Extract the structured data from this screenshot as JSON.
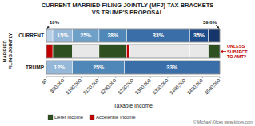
{
  "chart_data": {
    "type": "bar",
    "orientation": "horizontal",
    "title": "CURRENT MARRIED FILING JOINTLY (MFJ) TAX BRACKETS",
    "subtitle": "VS TRUMP'S PROPOSAL",
    "x_label": "Taxable Income",
    "y_label": "MARRIED\nFILING JOINTLY",
    "categories": [
      "CURRENT",
      null,
      "TRUMP"
    ],
    "rows": [
      {
        "starts": [
          0,
          18550,
          75300,
          151900,
          231450,
          413350,
          466950
        ],
        "ends": [
          18550,
          75300,
          151900,
          231450,
          413350,
          466950,
          500000
        ],
        "labels": [
          null,
          "15%",
          "25%",
          "28%",
          "33%",
          "35%",
          null
        ],
        "colors": [
          "#b8cfe8",
          "#95b8d9",
          "#6fa0c8",
          "#4e87b8",
          "#3a6ea8",
          "#1f4e8c",
          "#15356b"
        ]
      },
      {
        "starts": [
          0,
          18550,
          75300,
          151900,
          231450,
          240000,
          413350,
          466950
        ],
        "ends": [
          18550,
          75300,
          151900,
          231450,
          240000,
          413350,
          466950,
          500000
        ],
        "colors": [
          "#c00000",
          "#2e4f20",
          "#e8e8e8",
          "#2e4f20",
          "#c00000",
          "#e8e8e8",
          "#e8e8e8",
          "#2e4f20"
        ]
      },
      {
        "starts": [
          0,
          75300,
          225000
        ],
        "ends": [
          75300,
          225000,
          500000
        ],
        "labels": [
          "12%",
          "25%",
          "33%"
        ],
        "colors": [
          "#95b8d9",
          "#4e87b8",
          "#3a6ea8"
        ]
      }
    ],
    "xlim": [
      0,
      500000
    ],
    "xticks": [
      {
        "value": 0,
        "label": "$0"
      },
      {
        "value": 50000,
        "label": "$50,000"
      },
      {
        "value": 100000,
        "label": "$100,000"
      },
      {
        "value": 150000,
        "label": "$150,000"
      },
      {
        "value": 200000,
        "label": "$200,000"
      },
      {
        "value": 250000,
        "label": "$250,000"
      },
      {
        "value": 300000,
        "label": "$300,000"
      },
      {
        "value": 350000,
        "label": "$350,000"
      },
      {
        "value": 400000,
        "label": "$400,000"
      },
      {
        "value": 450000,
        "label": "$450,000"
      },
      {
        "value": 500000,
        "label": "$500,000"
      }
    ],
    "annotations": [
      {
        "text": "10%",
        "x": 0,
        "row": 0
      },
      {
        "text": "39.6%",
        "x": 500000,
        "row": 0
      },
      {
        "text": "UNLESS\nSUBJECT\nTO AMT?",
        "x": 500000,
        "row": 1,
        "color": "#c00000"
      }
    ],
    "legend": "bottom",
    "legend_items": [
      {
        "name": "Defer Income",
        "color": "#2e4f20"
      },
      {
        "name": "Accelerate Income",
        "color": "#c00000"
      }
    ],
    "credit": "© Michael Kitces  www.kitces.com"
  }
}
